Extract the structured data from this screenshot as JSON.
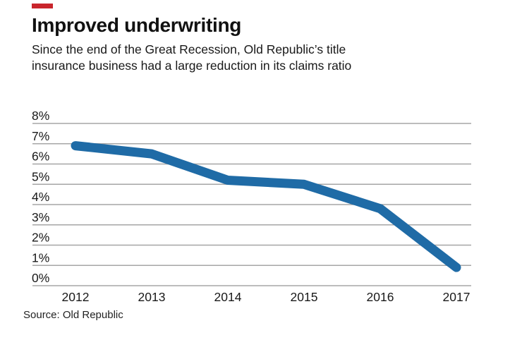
{
  "accent": {
    "color": "#c9252c"
  },
  "header": {
    "title": "Improved underwriting",
    "subtitle_line1": "Since the end of the Great Recession, Old Republic’s title",
    "subtitle_line2": "insurance business had a large reduction in its claims ratio"
  },
  "chart_data": {
    "type": "line",
    "title": "Improved underwriting",
    "categories": [
      "2012",
      "2013",
      "2014",
      "2015",
      "2016",
      "2017"
    ],
    "series": [
      {
        "name": "Claims ratio",
        "values": [
          6.9,
          6.5,
          5.2,
          5.0,
          3.8,
          0.9
        ]
      }
    ],
    "y_tick_labels": [
      "8%",
      "7%",
      "6%",
      "5%",
      "4%",
      "3%",
      "2%",
      "1%",
      "0%"
    ],
    "ylim": [
      0,
      8
    ],
    "xlabel": "",
    "ylabel": "",
    "grid": "horizontal",
    "legend": "none",
    "line_color": "#1f6ba6",
    "gridline_color": "#a6a6a6",
    "tick_label_color": "#191919"
  },
  "footer": {
    "source": "Source: Old Republic"
  }
}
